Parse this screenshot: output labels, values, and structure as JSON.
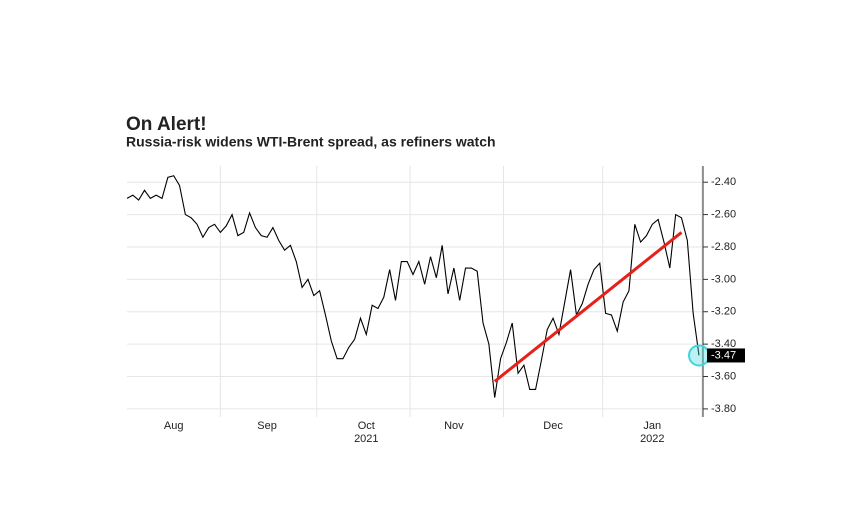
{
  "chart_data": {
    "type": "line",
    "title": "On Alert!",
    "subtitle": "Russia-risk widens WTI-Brent spread, as refiners watch",
    "categories": [
      null,
      null,
      null,
      null,
      null,
      null,
      null,
      null,
      "Aug",
      null,
      null,
      null,
      null,
      null,
      null,
      null,
      null,
      null,
      null,
      null,
      null,
      null,
      null,
      null,
      "Sep",
      null,
      null,
      null,
      null,
      null,
      null,
      null,
      null,
      null,
      null,
      null,
      null,
      null,
      null,
      null,
      null,
      "Oct",
      null,
      null,
      null,
      null,
      null,
      null,
      null,
      null,
      null,
      null,
      null,
      null,
      null,
      null,
      "Nov",
      null,
      null,
      null,
      null,
      null,
      null,
      null,
      null,
      null,
      null,
      null,
      null,
      null,
      null,
      null,
      null,
      "Dec",
      null,
      null,
      null,
      null,
      null,
      null,
      null,
      null,
      null,
      null,
      null,
      null,
      null,
      null,
      null,
      null,
      "Jan",
      null,
      null,
      null,
      null,
      null,
      null,
      null,
      null
    ],
    "year_categories": [
      null,
      null,
      null,
      null,
      null,
      null,
      null,
      null,
      null,
      null,
      null,
      null,
      null,
      null,
      null,
      null,
      null,
      null,
      null,
      null,
      null,
      null,
      null,
      null,
      null,
      null,
      null,
      null,
      null,
      null,
      null,
      null,
      null,
      null,
      null,
      null,
      null,
      null,
      null,
      null,
      null,
      "2021",
      null,
      null,
      null,
      null,
      null,
      null,
      null,
      null,
      null,
      null,
      null,
      null,
      null,
      null,
      null,
      null,
      null,
      null,
      null,
      null,
      null,
      null,
      null,
      null,
      null,
      null,
      null,
      null,
      null,
      null,
      null,
      null,
      null,
      null,
      null,
      null,
      null,
      null,
      null,
      null,
      null,
      null,
      null,
      null,
      null,
      null,
      null,
      null,
      "2022",
      null,
      null,
      null,
      null,
      null,
      null,
      null,
      null
    ],
    "values": [
      -2.5,
      -2.48,
      -2.51,
      -2.45,
      -2.5,
      -2.48,
      -2.5,
      -2.37,
      -2.36,
      -2.42,
      -2.6,
      -2.62,
      -2.66,
      -2.74,
      -2.68,
      -2.66,
      -2.71,
      -2.67,
      -2.6,
      -2.73,
      -2.71,
      -2.59,
      -2.68,
      -2.73,
      -2.74,
      -2.68,
      -2.76,
      -2.82,
      -2.79,
      -2.89,
      -3.05,
      -3.0,
      -3.1,
      -3.07,
      -3.22,
      -3.38,
      -3.49,
      -3.49,
      -3.42,
      -3.37,
      -3.24,
      -3.34,
      -3.16,
      -3.18,
      -3.11,
      -2.94,
      -3.13,
      -2.89,
      -2.89,
      -2.97,
      -2.89,
      -3.03,
      -2.86,
      -2.99,
      -2.79,
      -3.09,
      -2.93,
      -3.13,
      -2.93,
      -2.93,
      -2.95,
      -3.27,
      -3.4,
      -3.73,
      -3.49,
      -3.39,
      -3.27,
      -3.58,
      -3.53,
      -3.68,
      -3.68,
      -3.5,
      -3.31,
      -3.24,
      -3.34,
      -3.14,
      -2.94,
      -3.22,
      -3.15,
      -3.03,
      -2.94,
      -2.9,
      -3.21,
      -3.22,
      -3.32,
      -3.14,
      -3.07,
      -2.66,
      -2.77,
      -2.73,
      -2.66,
      -2.63,
      -2.77,
      -2.93,
      -2.6,
      -2.62,
      -2.76,
      -3.21,
      -3.47
    ],
    "last_value_label": "-3.47",
    "color": "#000000",
    "trend": {
      "color": "#e8201a",
      "from": {
        "index": 63,
        "value": -3.63
      },
      "to": {
        "index": 95,
        "value": -2.71
      }
    },
    "highlight_color": "#3fd6dc",
    "ylim": [
      -3.85,
      -2.3
    ],
    "yticks": [
      {
        "value": -2.4,
        "label": "-2.40"
      },
      {
        "value": -2.6,
        "label": "-2.60"
      },
      {
        "value": -2.8,
        "label": "-2.80"
      },
      {
        "value": -3.0,
        "label": "-3.00"
      },
      {
        "value": -3.2,
        "label": "-3.20"
      },
      {
        "value": -3.4,
        "label": "-3.40"
      },
      {
        "value": -3.6,
        "label": "-3.60"
      },
      {
        "value": -3.8,
        "label": "-3.80"
      }
    ],
    "grid": true
  }
}
